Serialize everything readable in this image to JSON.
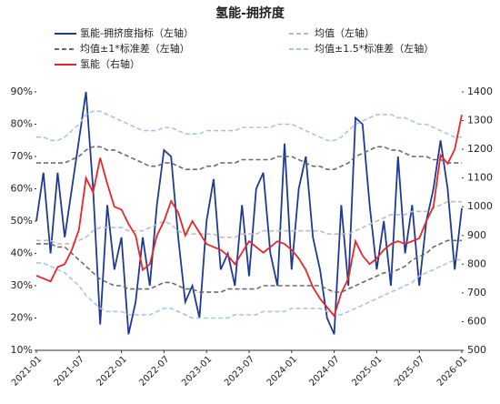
{
  "chart_data": {
    "type": "line",
    "title": "氢能-拥挤度",
    "x": [
      "2021-01",
      "2021-02",
      "2021-03",
      "2021-04",
      "2021-05",
      "2021-06",
      "2021-07",
      "2021-08",
      "2021-09",
      "2021-10",
      "2021-11",
      "2021-12",
      "2022-01",
      "2022-02",
      "2022-03",
      "2022-04",
      "2022-05",
      "2022-06",
      "2022-07",
      "2022-08",
      "2022-09",
      "2022-10",
      "2022-11",
      "2022-12",
      "2023-01",
      "2023-02",
      "2023-03",
      "2023-04",
      "2023-05",
      "2023-06",
      "2023-07",
      "2023-08",
      "2023-09",
      "2023-10",
      "2023-11",
      "2023-12",
      "2024-01",
      "2024-02",
      "2024-03",
      "2024-04",
      "2024-05",
      "2024-06",
      "2024-07",
      "2024-08",
      "2024-09",
      "2024-10",
      "2024-11",
      "2024-12",
      "2025-01",
      "2025-02",
      "2025-03",
      "2025-04",
      "2025-05",
      "2025-06",
      "2025-07",
      "2025-08",
      "2025-09",
      "2025-10",
      "2025-11",
      "2025-12",
      "2026-01"
    ],
    "xticks": [
      "2021-01",
      "2021-07",
      "2022-01",
      "2022-07",
      "2023-01",
      "2023-07",
      "2024-01",
      "2024-07",
      "2025-01",
      "2025-07",
      "2026-01"
    ],
    "ylim": [
      10,
      90
    ],
    "yticks": [
      {
        "value": 10,
        "label": "10%"
      },
      {
        "value": 20,
        "label": "20%"
      },
      {
        "value": 30,
        "label": "30%"
      },
      {
        "value": 40,
        "label": "40%"
      },
      {
        "value": 50,
        "label": "50%"
      },
      {
        "value": 60,
        "label": "60%"
      },
      {
        "value": 70,
        "label": "70%"
      },
      {
        "value": 80,
        "label": "80%"
      },
      {
        "value": 90,
        "label": "90%"
      }
    ],
    "y2lim": [
      500,
      1400
    ],
    "y2ticks": [
      500,
      600,
      700,
      800,
      900,
      1000,
      1100,
      1200,
      1300,
      1400
    ],
    "series": [
      {
        "name": "氢能-拥挤度指标（左轴）",
        "color": "#1f3a93",
        "dash": "solid",
        "values": [
          50,
          65,
          40,
          65,
          45,
          60,
          75,
          90,
          60,
          18,
          55,
          35,
          45,
          15,
          25,
          45,
          30,
          55,
          72,
          70,
          45,
          25,
          30,
          20,
          50,
          63,
          35,
          40,
          30,
          55,
          33,
          60,
          65,
          40,
          30,
          74,
          35,
          60,
          70,
          45,
          35,
          20,
          15,
          55,
          30,
          82,
          80,
          55,
          35,
          50,
          30,
          70,
          40,
          55,
          30,
          50,
          60,
          75,
          60,
          35,
          54
        ]
      },
      {
        "name": "均值（左轴）",
        "color": "#bdbdbd",
        "dash": "dashed",
        "values": [
          44,
          44,
          44,
          43,
          43,
          43,
          44,
          45,
          47,
          48,
          48,
          48,
          48,
          47,
          47,
          47,
          48,
          49,
          50,
          49,
          47,
          46,
          46,
          46,
          46,
          46,
          45,
          45,
          45,
          46,
          46,
          46,
          47,
          47,
          47,
          47,
          47,
          47,
          47,
          47,
          47,
          46,
          46,
          46,
          46,
          47,
          48,
          49,
          50,
          51,
          52,
          52,
          52,
          53,
          53,
          53,
          54,
          55,
          56,
          56,
          56
        ]
      },
      {
        "name": "均值±1*标准差（左轴）",
        "color": "#6b6b6b",
        "dash": "dashed",
        "values": [
          68,
          68,
          68,
          68,
          68,
          69,
          70,
          72,
          73,
          73,
          72,
          72,
          71,
          70,
          69,
          68,
          67,
          67,
          68,
          68,
          67,
          66,
          66,
          66,
          67,
          67,
          68,
          68,
          68,
          69,
          69,
          69,
          69,
          69,
          70,
          70,
          70,
          69,
          68,
          67,
          67,
          66,
          66,
          67,
          68,
          70,
          71,
          72,
          73,
          73,
          72,
          72,
          71,
          70,
          70,
          70,
          69,
          69,
          68,
          68,
          68
        ]
      },
      {
        "name": null,
        "color": "#6b6b6b",
        "dash": "dashed",
        "values": [
          43,
          43,
          43,
          42,
          42,
          40,
          38,
          36,
          34,
          32,
          31,
          30,
          30,
          29,
          29,
          29,
          29,
          30,
          31,
          31,
          30,
          29,
          29,
          28,
          28,
          28,
          28,
          29,
          29,
          29,
          29,
          29,
          30,
          30,
          30,
          30,
          30,
          30,
          30,
          30,
          30,
          29,
          28,
          28,
          29,
          30,
          31,
          32,
          33,
          34,
          34,
          35,
          36,
          38,
          39,
          40,
          42,
          43,
          44,
          44,
          44
        ]
      },
      {
        "name": "均值±1.5*标准差（左轴）",
        "color": "#aac4e8",
        "dash": "dashed",
        "values": [
          76,
          76,
          75,
          75,
          76,
          78,
          80,
          83,
          84,
          84,
          83,
          82,
          81,
          80,
          79,
          78,
          78,
          78,
          79,
          79,
          78,
          77,
          77,
          77,
          78,
          78,
          78,
          78,
          78,
          79,
          79,
          79,
          79,
          79,
          80,
          80,
          80,
          79,
          78,
          77,
          76,
          75,
          75,
          76,
          78,
          80,
          81,
          82,
          83,
          83,
          83,
          82,
          82,
          81,
          80,
          80,
          79,
          78,
          77,
          76,
          76
        ]
      },
      {
        "name": null,
        "color": "#aac4e8",
        "dash": "dashed",
        "values": [
          37,
          37,
          36,
          35,
          34,
          32,
          30,
          27,
          25,
          23,
          22,
          22,
          22,
          21,
          21,
          21,
          21,
          22,
          23,
          23,
          22,
          21,
          20,
          20,
          20,
          20,
          20,
          20,
          21,
          21,
          21,
          21,
          22,
          22,
          22,
          22,
          23,
          23,
          23,
          23,
          23,
          22,
          21,
          21,
          22,
          23,
          24,
          25,
          26,
          27,
          28,
          29,
          30,
          31,
          33,
          34,
          35,
          36,
          37,
          38,
          38
        ]
      },
      {
        "name": "氢能（右轴）",
        "color": "#e8262a",
        "dash": "solid",
        "axis": "y2",
        "values": [
          760,
          750,
          740,
          790,
          800,
          850,
          920,
          1100,
          1050,
          1170,
          1080,
          1000,
          990,
          940,
          900,
          780,
          800,
          900,
          950,
          1020,
          980,
          900,
          950,
          910,
          870,
          860,
          850,
          830,
          800,
          840,
          880,
          860,
          840,
          860,
          880,
          870,
          850,
          820,
          780,
          720,
          680,
          650,
          620,
          700,
          750,
          880,
          830,
          800,
          820,
          850,
          870,
          880,
          870,
          880,
          890,
          950,
          1000,
          1180,
          1150,
          1200,
          1320
        ]
      }
    ]
  }
}
